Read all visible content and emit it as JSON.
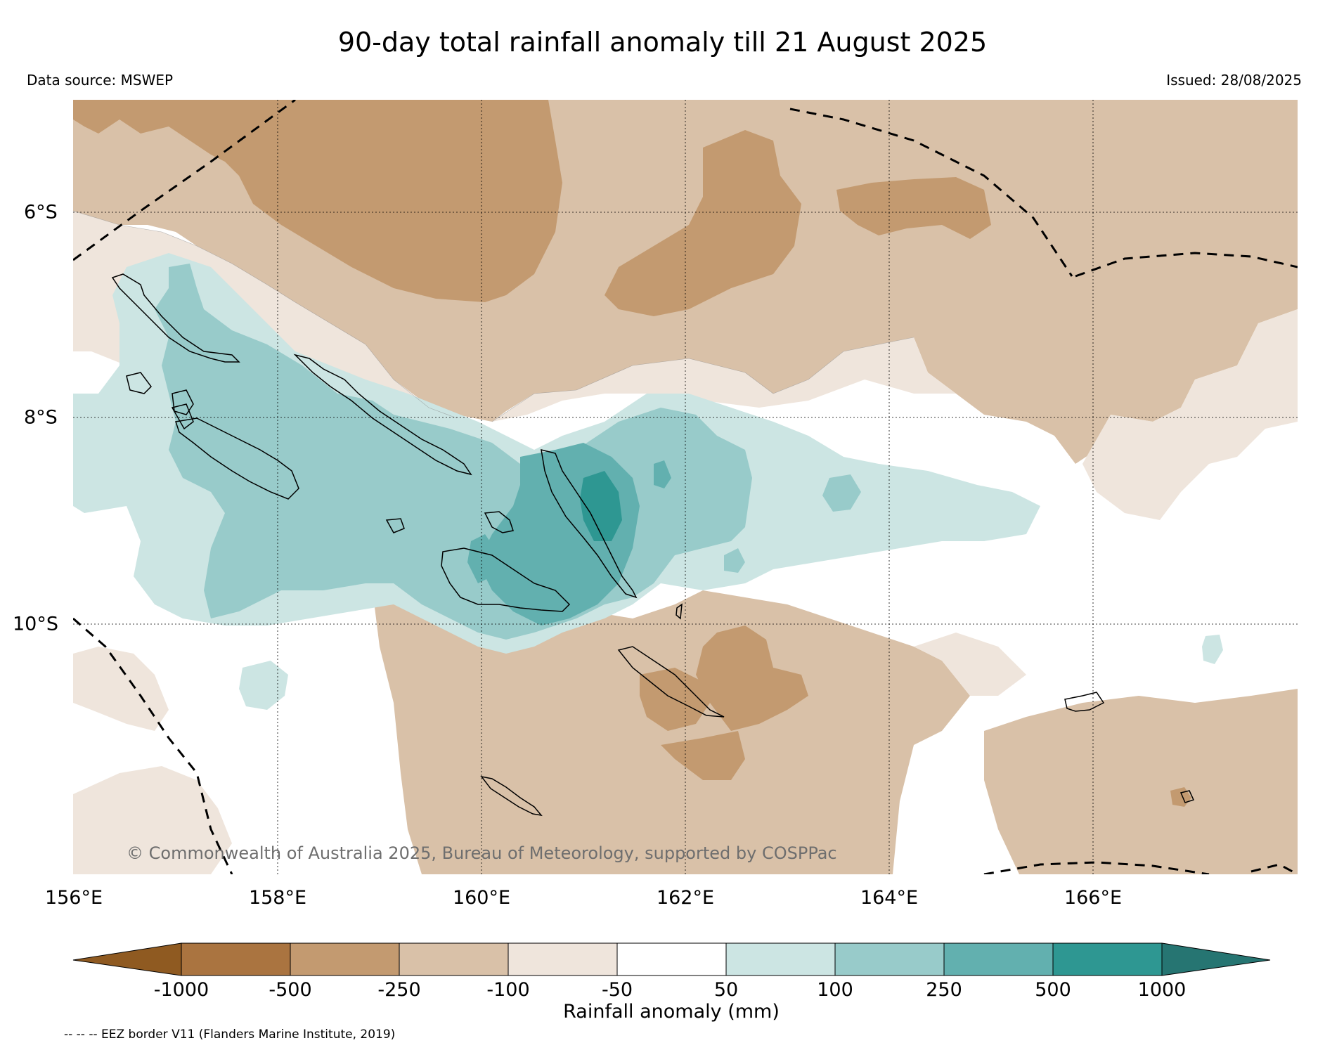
{
  "title": "90-day total rainfall anomaly till 21 August 2025",
  "data_source": "Data source: MSWEP",
  "issued": "Issued: 28/08/2025",
  "longitude_labels": [
    "156°E",
    "158°E",
    "160°E",
    "162°E",
    "164°E",
    "166°E"
  ],
  "latitude_labels": [
    "6°S",
    "8°S",
    "10°S"
  ],
  "copyright": "© Commonwealth of Australia 2025, Bureau of Meteorology, supported by COSPPac",
  "colorbar": {
    "title": "Rainfall anomaly (mm)",
    "ticks": [
      "-1000",
      "-500",
      "-250",
      "-100",
      "-50",
      "50",
      "100",
      "250",
      "500",
      "1000"
    ],
    "colors": [
      "#8f5a21",
      "#aa7440",
      "#c39a70",
      "#d9c1a8",
      "#efe5dc",
      "#ffffff",
      "#cce5e3",
      "#98cbca",
      "#62b0af",
      "#2e9792",
      "#267572"
    ]
  },
  "legend_note": "-- -- -- EEZ border V11 (Flanders Marine Institute, 2019)"
}
